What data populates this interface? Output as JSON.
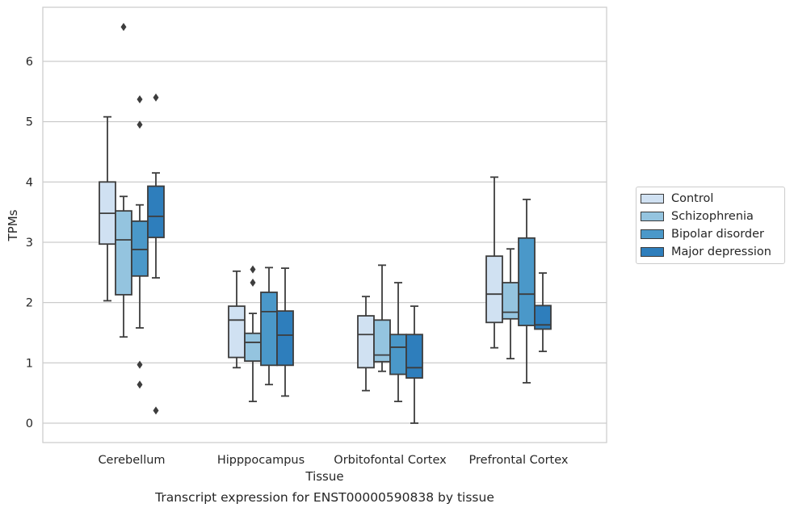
{
  "chart_data": {
    "type": "box",
    "title": "Transcript expression for ENST00000590838 by tissue",
    "xlabel": "Tissue",
    "ylabel": "TPMs",
    "ylim": [
      -0.32,
      6.88
    ],
    "yticks": [
      0,
      1,
      2,
      3,
      4,
      5,
      6
    ],
    "grid": "horizontal",
    "legend_position": "right",
    "categories": [
      "Cerebellum",
      "Hipppocampus",
      "Orbitofontal Cortex",
      "Prefrontal Cortex"
    ],
    "series": [
      {
        "name": "Control",
        "color": "#d0e1f2",
        "boxes": [
          {
            "whislo": 2.03,
            "q1": 2.97,
            "median": 3.48,
            "q3": 4.0,
            "whishi": 5.08,
            "fliers": []
          },
          {
            "whislo": 0.92,
            "q1": 1.09,
            "median": 1.71,
            "q3": 1.94,
            "whishi": 2.52,
            "fliers": []
          },
          {
            "whislo": 0.54,
            "q1": 0.92,
            "median": 1.47,
            "q3": 1.78,
            "whishi": 2.1,
            "fliers": []
          },
          {
            "whislo": 1.25,
            "q1": 1.67,
            "median": 2.14,
            "q3": 2.77,
            "whishi": 4.08,
            "fliers": []
          }
        ]
      },
      {
        "name": "Schizophrenia",
        "color": "#94c4df",
        "boxes": [
          {
            "whislo": 1.43,
            "q1": 2.13,
            "median": 3.04,
            "q3": 3.52,
            "whishi": 3.76,
            "fliers": [
              6.57
            ]
          },
          {
            "whislo": 0.36,
            "q1": 1.03,
            "median": 1.34,
            "q3": 1.49,
            "whishi": 1.82,
            "fliers": [
              2.33,
              2.55
            ]
          },
          {
            "whislo": 0.86,
            "q1": 1.02,
            "median": 1.13,
            "q3": 1.71,
            "whishi": 2.62,
            "fliers": []
          },
          {
            "whislo": 1.07,
            "q1": 1.73,
            "median": 1.84,
            "q3": 2.33,
            "whishi": 2.89,
            "fliers": []
          }
        ]
      },
      {
        "name": "Bipolar disorder",
        "color": "#4a98c9",
        "boxes": [
          {
            "whislo": 1.58,
            "q1": 2.44,
            "median": 2.88,
            "q3": 3.35,
            "whishi": 3.62,
            "fliers": [
              0.64,
              0.97,
              4.95,
              5.37
            ]
          },
          {
            "whislo": 0.64,
            "q1": 0.96,
            "median": 1.85,
            "q3": 2.17,
            "whishi": 2.58,
            "fliers": []
          },
          {
            "whislo": 0.36,
            "q1": 0.81,
            "median": 1.26,
            "q3": 1.47,
            "whishi": 2.33,
            "fliers": []
          },
          {
            "whislo": 0.67,
            "q1": 1.62,
            "median": 2.14,
            "q3": 3.07,
            "whishi": 3.71,
            "fliers": []
          }
        ]
      },
      {
        "name": "Major depression",
        "color": "#2e7ebc",
        "boxes": [
          {
            "whislo": 2.41,
            "q1": 3.08,
            "median": 3.43,
            "q3": 3.93,
            "whishi": 4.15,
            "fliers": [
              0.21,
              5.4
            ]
          },
          {
            "whislo": 0.45,
            "q1": 0.96,
            "median": 1.46,
            "q3": 1.86,
            "whishi": 2.57,
            "fliers": []
          },
          {
            "whislo": 0.0,
            "q1": 0.75,
            "median": 0.92,
            "q3": 1.47,
            "whishi": 1.94,
            "fliers": []
          },
          {
            "whislo": 1.19,
            "q1": 1.56,
            "median": 1.63,
            "q3": 1.95,
            "whishi": 2.49,
            "fliers": []
          }
        ]
      }
    ]
  }
}
